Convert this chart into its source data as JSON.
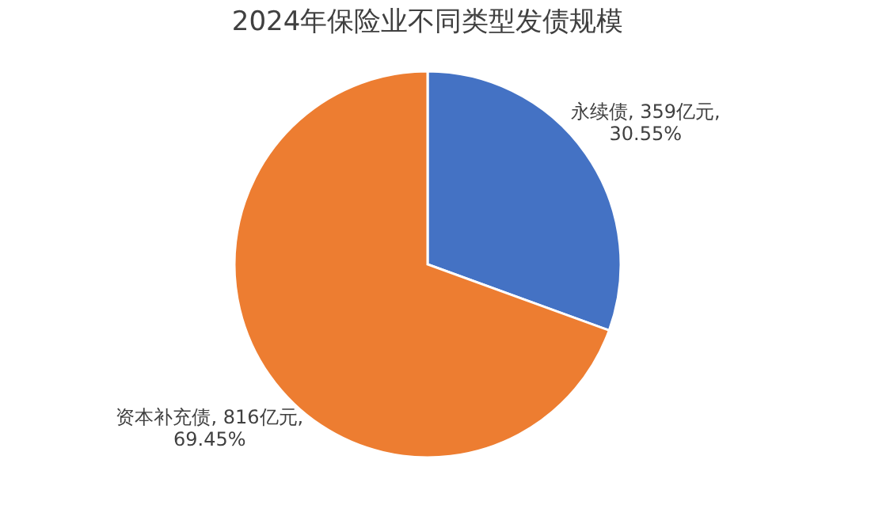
{
  "chart_data": {
    "type": "pie",
    "title": "2024年保险业不同类型发债规模",
    "categories": [
      "永续债",
      "资本补充债"
    ],
    "values": [
      359,
      816
    ],
    "colors": [
      "#4472c4",
      "#ed7d31"
    ],
    "value_labels": [
      "359亿元,\n30.55%",
      "816亿元,\n69.45%"
    ],
    "legend": false
  }
}
